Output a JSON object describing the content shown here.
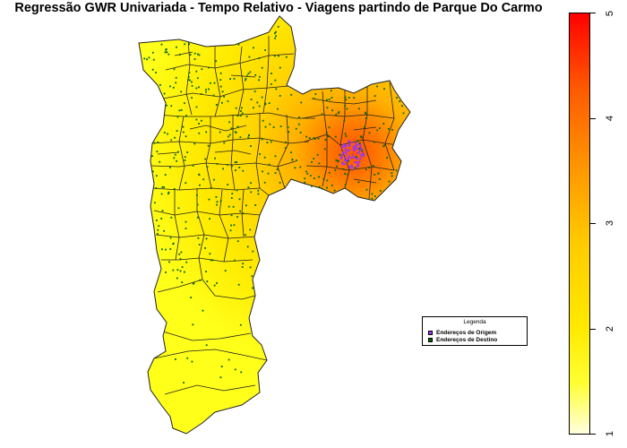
{
  "title": "Regressão GWR Univariada - Tempo Relativo - Viagens partindo de Parque Do Carmo",
  "legend": {
    "title": "Legenda",
    "items": [
      {
        "label": "Endereços de Origem",
        "color": "#9933ff"
      },
      {
        "label": "Endereços de Destino",
        "color": "#006600"
      }
    ]
  },
  "colorbar": {
    "min": 1,
    "max": 5,
    "ticks": [
      "1",
      "2",
      "3",
      "4",
      "5"
    ],
    "colors": [
      "#ffffe0",
      "#ffff33",
      "#ffcc00",
      "#ff9a00",
      "#ff0000"
    ]
  },
  "colors": {
    "district_border": "#222222",
    "base_fill": "#ffe600",
    "hot_fill": "#ff5a00"
  }
}
